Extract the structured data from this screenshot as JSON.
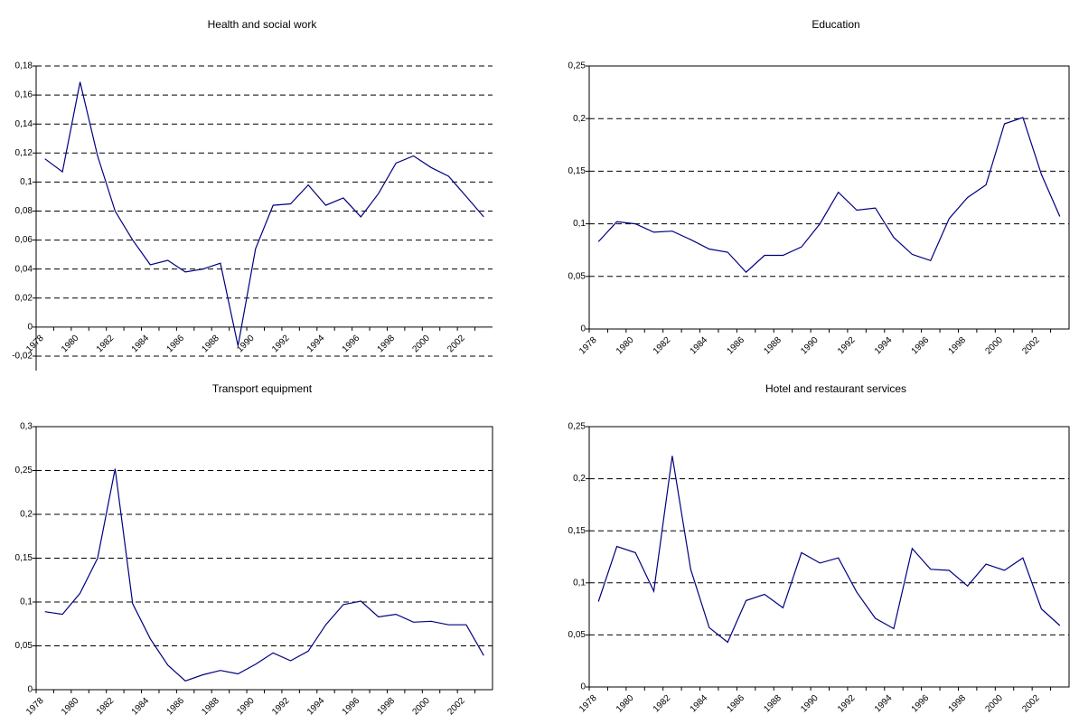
{
  "chart_data": [
    {
      "type": "line",
      "title": "Health and social work",
      "categories": [
        "1978",
        null,
        "1980",
        null,
        "1982",
        null,
        "1984",
        null,
        "1986",
        null,
        "1988",
        null,
        "1990",
        null,
        "1992",
        null,
        "1994",
        null,
        "1996",
        null,
        "1998",
        null,
        "2000",
        null,
        "2002",
        null
      ],
      "values": [
        0.116,
        0.107,
        0.169,
        0.118,
        0.08,
        0.06,
        0.043,
        0.046,
        0.038,
        0.04,
        0.044,
        -0.013,
        0.054,
        0.084,
        0.085,
        0.098,
        0.084,
        0.089,
        0.076,
        0.092,
        0.113,
        0.118,
        0.11,
        0.104,
        0.09,
        0.076
      ],
      "color": "#000080",
      "ylim": [
        -0.03,
        0.18
      ],
      "yticks": [
        {
          "value": -0.02,
          "label": "-0,02"
        },
        0,
        {
          "value": 0.02,
          "label": "0,02"
        },
        {
          "value": 0.04,
          "label": "0,04"
        },
        {
          "value": 0.06,
          "label": "0,06"
        },
        {
          "value": 0.08,
          "label": "0,08"
        },
        {
          "value": 0.1,
          "label": "0,1"
        },
        {
          "value": 0.12,
          "label": "0,12"
        },
        {
          "value": 0.14,
          "label": "0,14"
        },
        {
          "value": 0.16,
          "label": "0,16"
        },
        {
          "value": 0.18,
          "label": "0,18"
        }
      ],
      "grid": true,
      "frame": false
    },
    {
      "type": "line",
      "title": "Education",
      "categories": [
        "1978",
        null,
        "1980",
        null,
        "1982",
        null,
        "1984",
        null,
        "1986",
        null,
        "1988",
        null,
        "1990",
        null,
        "1992",
        null,
        "1994",
        null,
        "1996",
        null,
        "1998",
        null,
        "2000",
        null,
        "2002",
        null
      ],
      "values": [
        0.083,
        0.102,
        0.1,
        0.092,
        0.093,
        0.085,
        0.076,
        0.073,
        0.054,
        0.07,
        0.07,
        0.078,
        0.1,
        0.13,
        0.113,
        0.115,
        0.087,
        0.071,
        0.065,
        0.105,
        0.125,
        0.137,
        0.195,
        0.201,
        0.147,
        0.107
      ],
      "color": "#000080",
      "ylim": [
        0,
        0.25
      ],
      "yticks": [
        0,
        {
          "value": 0.05,
          "label": "0,05"
        },
        {
          "value": 0.1,
          "label": "0,1"
        },
        {
          "value": 0.15,
          "label": "0,15"
        },
        {
          "value": 0.2,
          "label": "0,2"
        },
        {
          "value": 0.25,
          "label": "0,25"
        }
      ],
      "grid": true,
      "frame": true
    },
    {
      "type": "line",
      "title": "Transport equipment",
      "categories": [
        "1978",
        null,
        "1980",
        null,
        "1982",
        null,
        "1984",
        null,
        "1986",
        null,
        "1988",
        null,
        "1990",
        null,
        "1992",
        null,
        "1994",
        null,
        "1996",
        null,
        "1998",
        null,
        "2000",
        null,
        "2002",
        null
      ],
      "values": [
        0.089,
        0.086,
        0.11,
        0.15,
        0.252,
        0.098,
        0.058,
        0.028,
        0.01,
        0.017,
        0.022,
        0.018,
        0.029,
        0.042,
        0.033,
        0.044,
        0.074,
        0.097,
        0.101,
        0.083,
        0.086,
        0.077,
        0.078,
        0.074,
        0.074,
        0.039
      ],
      "color": "#000080",
      "ylim": [
        0,
        0.3
      ],
      "yticks": [
        0,
        {
          "value": 0.05,
          "label": "0,05"
        },
        {
          "value": 0.1,
          "label": "0,1"
        },
        {
          "value": 0.15,
          "label": "0,15"
        },
        {
          "value": 0.2,
          "label": "0,2"
        },
        {
          "value": 0.25,
          "label": "0,25"
        },
        {
          "value": 0.3,
          "label": "0,3"
        }
      ],
      "grid": true,
      "frame": true
    },
    {
      "type": "line",
      "title": "Hotel and restaurant services",
      "categories": [
        "1978",
        null,
        "1980",
        null,
        "1982",
        null,
        "1984",
        null,
        "1986",
        null,
        "1988",
        null,
        "1990",
        null,
        "1992",
        null,
        "1994",
        null,
        "1996",
        null,
        "1998",
        null,
        "2000",
        null,
        "2002",
        null
      ],
      "values": [
        0.082,
        0.135,
        0.129,
        0.092,
        0.222,
        0.113,
        0.057,
        0.043,
        0.083,
        0.089,
        0.076,
        0.129,
        0.119,
        0.124,
        0.091,
        0.066,
        0.056,
        0.133,
        0.113,
        0.112,
        0.097,
        0.118,
        0.112,
        0.124,
        0.075,
        0.059
      ],
      "color": "#000080",
      "ylim": [
        0,
        0.25
      ],
      "yticks": [
        0,
        {
          "value": 0.05,
          "label": "0,05"
        },
        {
          "value": 0.1,
          "label": "0,1"
        },
        {
          "value": 0.15,
          "label": "0,15"
        },
        {
          "value": 0.2,
          "label": "0,2"
        },
        {
          "value": 0.25,
          "label": "0,25"
        }
      ],
      "grid": true,
      "frame": true
    }
  ]
}
